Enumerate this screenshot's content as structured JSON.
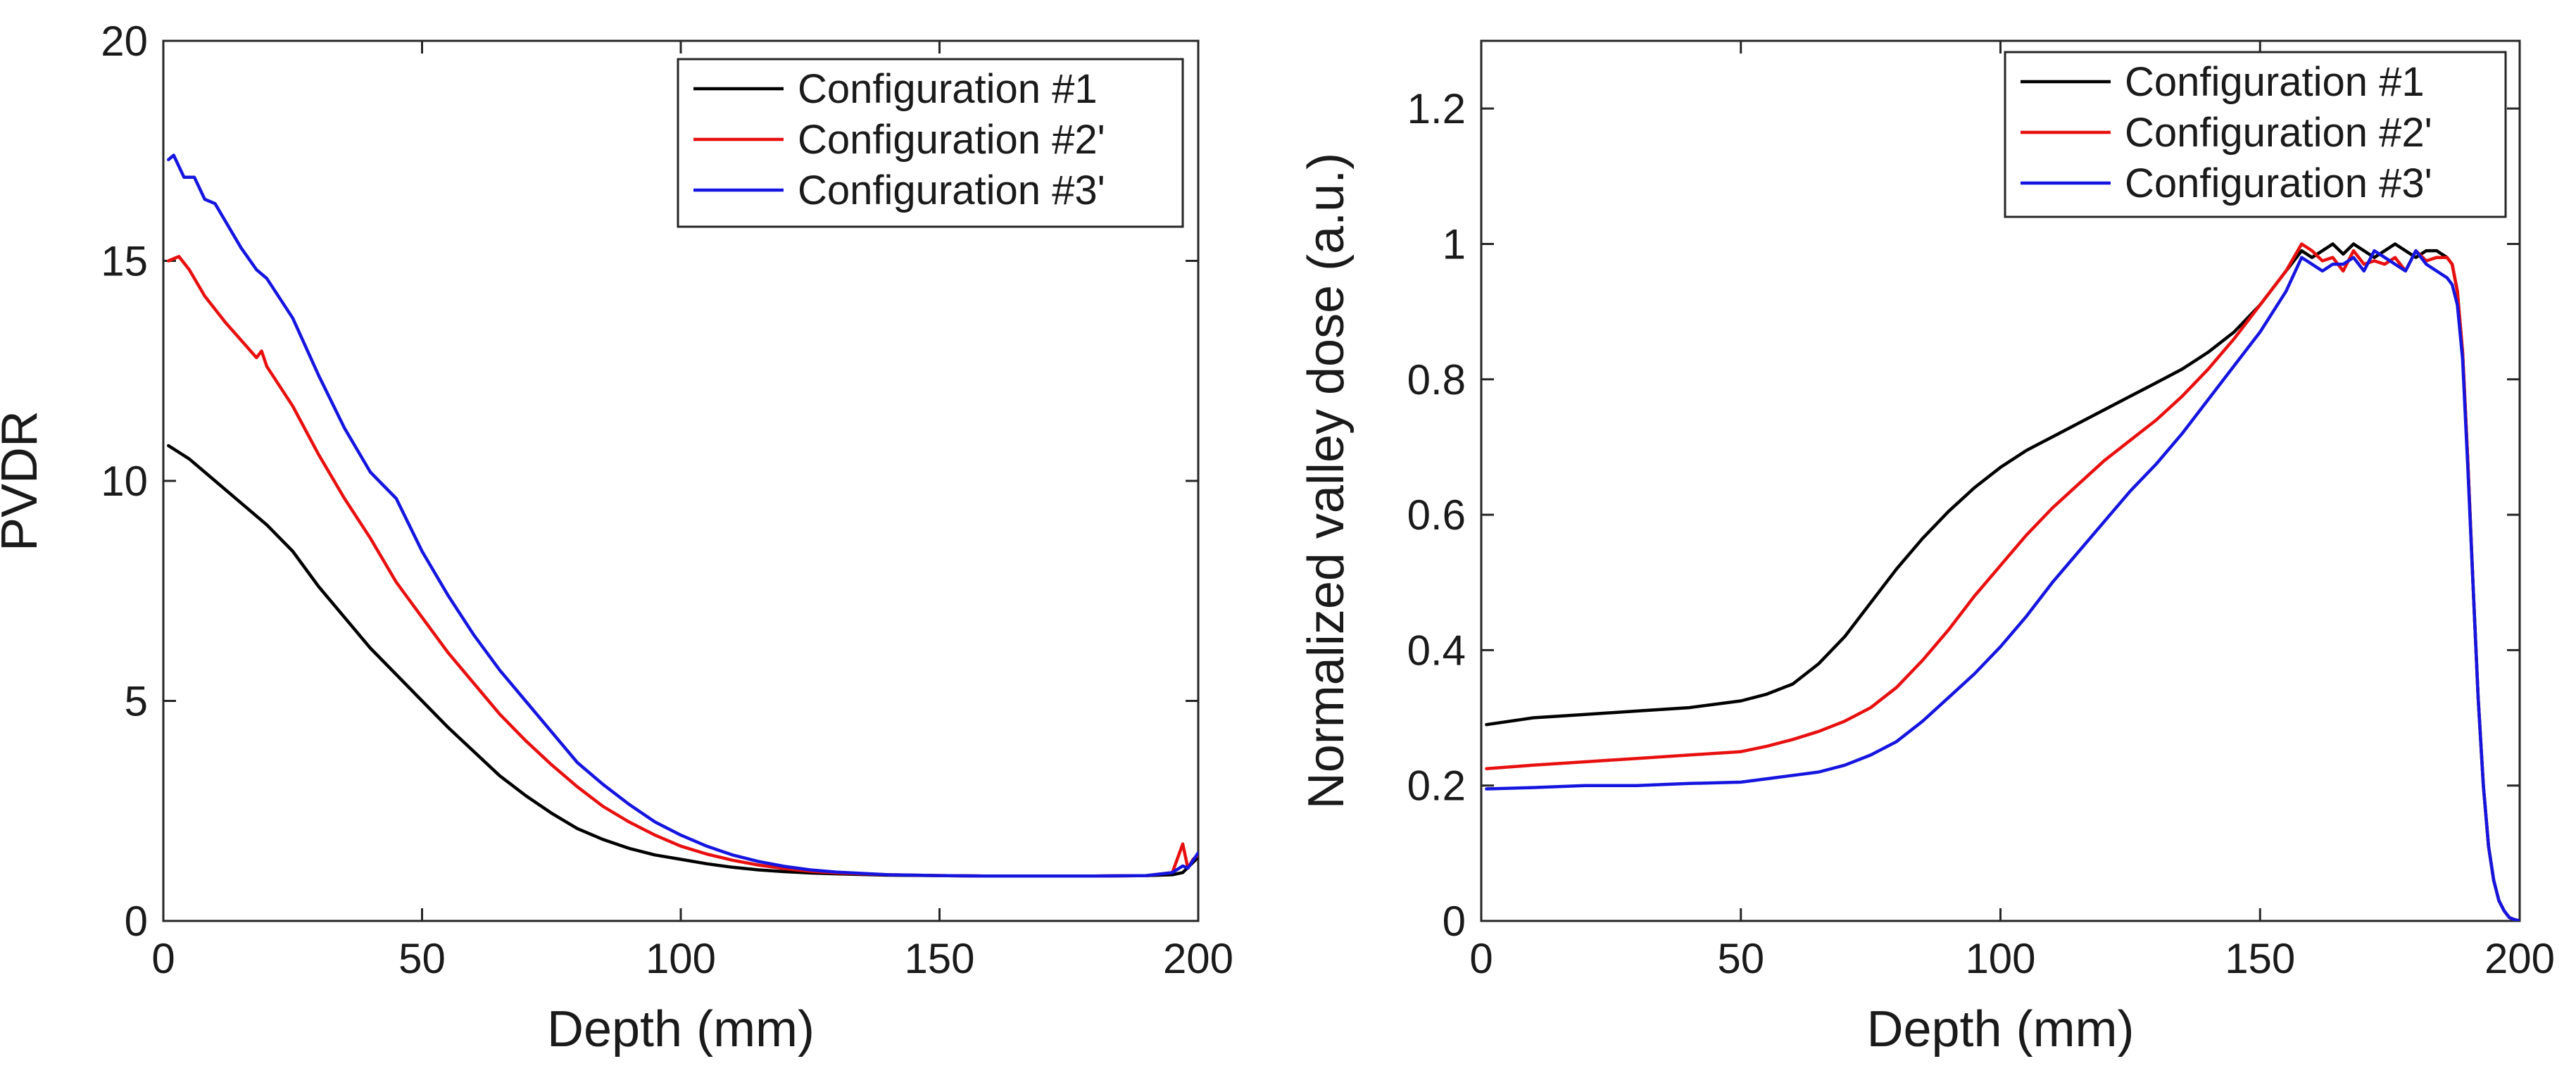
{
  "chart_data": [
    {
      "type": "line",
      "title": "",
      "xlabel": "Depth (mm)",
      "ylabel": "PVDR",
      "xlim": [
        0,
        200
      ],
      "ylim": [
        0,
        20
      ],
      "xticks": [
        0,
        50,
        100,
        150,
        200
      ],
      "yticks": [
        0,
        5,
        10,
        15,
        20
      ],
      "grid": false,
      "legend_position": "top-right",
      "series": [
        {
          "name": "Configuration #1",
          "color": "#000000",
          "x": [
            1,
            5,
            10,
            15,
            20,
            25,
            30,
            35,
            40,
            45,
            50,
            55,
            60,
            65,
            70,
            75,
            80,
            85,
            90,
            95,
            100,
            105,
            110,
            115,
            120,
            125,
            130,
            140,
            150,
            160,
            170,
            180,
            190,
            195,
            197,
            200
          ],
          "y": [
            10.8,
            10.5,
            10.0,
            9.5,
            9.0,
            8.4,
            7.6,
            6.9,
            6.2,
            5.6,
            5.0,
            4.4,
            3.85,
            3.3,
            2.85,
            2.45,
            2.1,
            1.85,
            1.65,
            1.5,
            1.4,
            1.3,
            1.22,
            1.16,
            1.12,
            1.09,
            1.07,
            1.04,
            1.03,
            1.02,
            1.02,
            1.02,
            1.03,
            1.05,
            1.1,
            1.45
          ]
        },
        {
          "name": "Configuration #2'",
          "color": "#e8100f",
          "x": [
            1,
            3,
            5,
            8,
            12,
            15,
            18,
            19,
            20,
            25,
            30,
            35,
            40,
            45,
            50,
            55,
            60,
            65,
            70,
            75,
            80,
            85,
            90,
            95,
            100,
            105,
            110,
            115,
            120,
            125,
            130,
            140,
            150,
            160,
            170,
            180,
            190,
            195,
            197,
            198,
            199,
            200
          ],
          "y": [
            15.0,
            15.1,
            14.8,
            14.2,
            13.6,
            13.2,
            12.8,
            12.95,
            12.6,
            11.7,
            10.6,
            9.6,
            8.7,
            7.7,
            6.9,
            6.1,
            5.4,
            4.7,
            4.1,
            3.55,
            3.05,
            2.6,
            2.25,
            1.95,
            1.7,
            1.52,
            1.38,
            1.27,
            1.19,
            1.13,
            1.09,
            1.05,
            1.03,
            1.02,
            1.02,
            1.02,
            1.03,
            1.1,
            1.75,
            1.2,
            1.4,
            1.5
          ]
        },
        {
          "name": "Configuration #3'",
          "color": "#1515e0",
          "x": [
            1,
            2,
            4,
            6,
            8,
            10,
            12,
            15,
            18,
            20,
            25,
            30,
            35,
            40,
            45,
            50,
            55,
            60,
            65,
            70,
            75,
            80,
            85,
            90,
            95,
            100,
            105,
            110,
            115,
            120,
            125,
            130,
            140,
            150,
            160,
            170,
            180,
            190,
            195,
            197,
            198,
            200
          ],
          "y": [
            17.3,
            17.4,
            16.9,
            16.9,
            16.4,
            16.3,
            15.9,
            15.3,
            14.8,
            14.6,
            13.7,
            12.4,
            11.2,
            10.2,
            9.6,
            8.4,
            7.4,
            6.5,
            5.7,
            5.0,
            4.3,
            3.6,
            3.1,
            2.65,
            2.25,
            1.95,
            1.7,
            1.5,
            1.35,
            1.24,
            1.16,
            1.11,
            1.05,
            1.03,
            1.02,
            1.02,
            1.02,
            1.03,
            1.1,
            1.25,
            1.2,
            1.55
          ]
        }
      ]
    },
    {
      "type": "line",
      "title": "",
      "xlabel": "Depth (mm)",
      "ylabel": "Normalized valley dose (a.u.)",
      "xlim": [
        0,
        200
      ],
      "ylim": [
        0,
        1.3
      ],
      "xticks": [
        0,
        50,
        100,
        150,
        200
      ],
      "yticks": [
        0,
        0.2,
        0.4,
        0.6,
        0.8,
        1,
        1.2
      ],
      "grid": false,
      "legend_position": "top-right",
      "series": [
        {
          "name": "Configuration #1",
          "color": "#000000",
          "x": [
            1,
            10,
            20,
            30,
            40,
            50,
            55,
            60,
            65,
            70,
            75,
            80,
            85,
            90,
            95,
            100,
            105,
            110,
            115,
            120,
            125,
            130,
            135,
            140,
            145,
            150,
            155,
            158,
            160,
            162,
            164,
            166,
            168,
            170,
            172,
            174,
            176,
            178,
            180,
            182,
            184,
            186,
            187,
            188,
            189,
            190,
            191,
            192,
            193,
            194,
            195,
            196,
            197,
            198,
            199,
            200
          ],
          "y": [
            0.29,
            0.3,
            0.305,
            0.31,
            0.315,
            0.325,
            0.335,
            0.35,
            0.38,
            0.42,
            0.47,
            0.52,
            0.565,
            0.605,
            0.64,
            0.67,
            0.695,
            0.715,
            0.735,
            0.755,
            0.775,
            0.795,
            0.815,
            0.84,
            0.87,
            0.91,
            0.96,
            0.99,
            0.98,
            0.99,
            1.0,
            0.985,
            1.0,
            0.99,
            0.98,
            0.99,
            1.0,
            0.99,
            0.98,
            0.99,
            0.99,
            0.98,
            0.97,
            0.93,
            0.84,
            0.68,
            0.5,
            0.33,
            0.2,
            0.11,
            0.06,
            0.03,
            0.015,
            0.005,
            0.002,
            0.0
          ]
        },
        {
          "name": "Configuration #2'",
          "color": "#e8100f",
          "x": [
            1,
            10,
            20,
            30,
            40,
            50,
            55,
            60,
            65,
            70,
            75,
            80,
            85,
            90,
            95,
            100,
            105,
            110,
            115,
            120,
            125,
            130,
            135,
            140,
            145,
            150,
            155,
            158,
            160,
            162,
            164,
            166,
            168,
            170,
            172,
            174,
            176,
            178,
            180,
            182,
            184,
            186,
            187,
            188,
            189,
            190,
            191,
            192,
            193,
            194,
            195,
            196,
            197,
            198,
            199,
            200
          ],
          "y": [
            0.225,
            0.23,
            0.235,
            0.24,
            0.245,
            0.25,
            0.258,
            0.268,
            0.28,
            0.295,
            0.315,
            0.345,
            0.385,
            0.43,
            0.48,
            0.525,
            0.57,
            0.61,
            0.645,
            0.68,
            0.71,
            0.74,
            0.775,
            0.815,
            0.86,
            0.91,
            0.96,
            1.0,
            0.99,
            0.975,
            0.98,
            0.96,
            0.99,
            0.97,
            0.975,
            0.97,
            0.98,
            0.96,
            0.99,
            0.975,
            0.98,
            0.98,
            0.97,
            0.93,
            0.84,
            0.68,
            0.5,
            0.33,
            0.2,
            0.11,
            0.06,
            0.03,
            0.015,
            0.005,
            0.002,
            0.0
          ]
        },
        {
          "name": "Configuration #3'",
          "color": "#1515e0",
          "x": [
            1,
            10,
            20,
            30,
            40,
            50,
            55,
            60,
            65,
            70,
            75,
            80,
            85,
            90,
            95,
            100,
            105,
            110,
            115,
            120,
            125,
            130,
            135,
            140,
            145,
            150,
            155,
            158,
            160,
            162,
            164,
            166,
            168,
            170,
            172,
            174,
            176,
            178,
            180,
            182,
            184,
            186,
            187,
            188,
            189,
            190,
            191,
            192,
            193,
            194,
            195,
            196,
            197,
            198,
            199,
            200
          ],
          "y": [
            0.195,
            0.197,
            0.2,
            0.2,
            0.203,
            0.205,
            0.21,
            0.215,
            0.22,
            0.23,
            0.245,
            0.265,
            0.295,
            0.33,
            0.365,
            0.405,
            0.45,
            0.5,
            0.545,
            0.59,
            0.635,
            0.675,
            0.72,
            0.77,
            0.82,
            0.87,
            0.93,
            0.98,
            0.97,
            0.96,
            0.97,
            0.97,
            0.98,
            0.96,
            0.99,
            0.98,
            0.97,
            0.96,
            0.99,
            0.97,
            0.96,
            0.95,
            0.94,
            0.91,
            0.83,
            0.67,
            0.5,
            0.33,
            0.2,
            0.11,
            0.06,
            0.03,
            0.015,
            0.005,
            0.002,
            0.0
          ]
        }
      ]
    }
  ]
}
